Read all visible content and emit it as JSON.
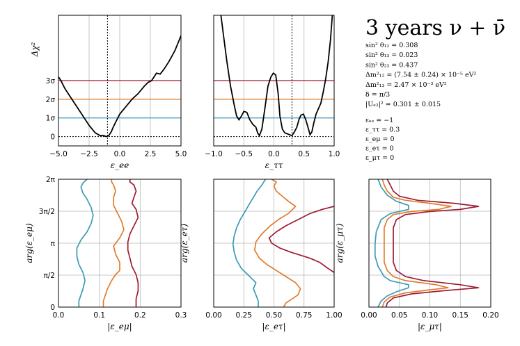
{
  "colors": {
    "sigma1": "#3a9bb5",
    "sigma2": "#e07b2e",
    "sigma3": "#9e1b32",
    "grid": "#b8b8b8"
  },
  "info": {
    "title": "3 years ν + ν̄",
    "params": [
      "sin² θ₁₂ = 0.308",
      "sin² θ₁₃ = 0.023",
      "sin² θ₂₃ = 0.437",
      "Δm²₁₂ = (7.54 ± 0.24) × 10⁻⁵ eV²",
      "Δm²₁₃ = 2.47 × 10⁻³ eV²",
      "δ = π/3",
      "|Uₑ₂|² = 0.301 ± 0.015"
    ],
    "nsi": [
      "εₑₑ = −1",
      "ε_ττ = 0.3",
      "ε_eμ = 0",
      "ε_eτ = 0",
      "ε_μτ = 0"
    ]
  },
  "chart_data": [
    {
      "type": "line",
      "title": "",
      "xlabel": "ε_ee",
      "ylabel": "Δχ²",
      "xlim": [
        -5,
        5
      ],
      "ylim": [
        -0.5,
        6.5
      ],
      "xticks": [
        "−5.0",
        "−2.5",
        "0.0",
        "2.5",
        "5.0"
      ],
      "yticks": [
        "0",
        "1σ",
        "2σ",
        "3σ"
      ],
      "ytick_values": [
        0,
        1,
        2,
        3
      ],
      "true_value": -1,
      "x": [
        -5,
        -4.8,
        -4.5,
        -4,
        -3.5,
        -3,
        -2.5,
        -2,
        -1.6,
        -1.3,
        -1.1,
        -0.9,
        -0.7,
        -0.5,
        -0.2,
        0,
        0.5,
        1,
        1.5,
        2,
        2.3,
        2.6,
        3,
        3.3,
        3.6,
        4,
        4.5,
        5
      ],
      "y": [
        3.2,
        3.0,
        2.6,
        2.1,
        1.6,
        1.1,
        0.6,
        0.2,
        0.05,
        0.05,
        0.0,
        0.05,
        0.25,
        0.55,
        0.95,
        1.2,
        1.6,
        2.0,
        2.3,
        2.7,
        2.9,
        3.0,
        3.4,
        3.35,
        3.6,
        4.0,
        4.6,
        5.4
      ]
    },
    {
      "type": "line",
      "title": "",
      "xlabel": "ε_ττ",
      "ylabel": "",
      "xlim": [
        -1,
        1
      ],
      "ylim": [
        -0.5,
        6.5
      ],
      "xticks": [
        "−1.0",
        "−0.5",
        "0.0",
        "0.5",
        "1.0"
      ],
      "true_value": 0.3,
      "x": [
        -0.88,
        -0.84,
        -0.78,
        -0.72,
        -0.66,
        -0.62,
        -0.58,
        -0.54,
        -0.5,
        -0.45,
        -0.4,
        -0.35,
        -0.3,
        -0.27,
        -0.24,
        -0.2,
        -0.15,
        -0.1,
        -0.05,
        -0.01,
        0.03,
        0.07,
        0.1,
        0.14,
        0.18,
        0.22,
        0.26,
        0.3,
        0.34,
        0.38,
        0.42,
        0.45,
        0.49,
        0.53,
        0.57,
        0.6,
        0.63,
        0.66,
        0.7,
        0.74,
        0.78,
        0.82,
        0.86,
        0.9,
        0.94,
        0.97
      ],
      "y": [
        6.5,
        5.5,
        4.0,
        2.7,
        1.7,
        1.1,
        0.9,
        1.1,
        1.35,
        1.3,
        0.9,
        0.65,
        0.5,
        0.2,
        0.05,
        0.4,
        1.5,
        2.7,
        3.2,
        3.4,
        3.3,
        2.3,
        1.1,
        0.4,
        0.2,
        0.15,
        0.1,
        0.05,
        0.25,
        0.5,
        0.95,
        1.15,
        1.2,
        0.9,
        0.45,
        0.1,
        0.25,
        0.7,
        1.2,
        1.5,
        1.8,
        2.4,
        3.1,
        4.0,
        5.2,
        6.5
      ]
    },
    {
      "type": "line",
      "title": "",
      "xlabel": "|ε_eμ|",
      "ylabel": "arg(ε_eμ)",
      "xlim": [
        0,
        0.3
      ],
      "ylim": [
        0,
        6.2832
      ],
      "xticks": [
        "0.0",
        "0.1",
        "0.2",
        "0.3"
      ],
      "yticks": [
        "0",
        "π/2",
        "π",
        "3π/2",
        "2π"
      ],
      "series": [
        {
          "name": "1σ",
          "x": [
            0.05,
            0.05,
            0.055,
            0.06,
            0.065,
            0.06,
            0.05,
            0.045,
            0.045,
            0.055,
            0.07,
            0.08,
            0.085,
            0.08,
            0.07,
            0.06,
            0.055,
            0.06,
            0.07
          ],
          "y": [
            0.0,
            0.3,
            0.6,
            0.9,
            1.3,
            1.7,
            2.1,
            2.5,
            2.9,
            3.3,
            3.7,
            4.1,
            4.5,
            4.9,
            5.3,
            5.6,
            5.9,
            6.1,
            6.2832
          ]
        },
        {
          "name": "2σ",
          "x": [
            0.11,
            0.11,
            0.115,
            0.12,
            0.13,
            0.14,
            0.15,
            0.15,
            0.14,
            0.135,
            0.15,
            0.16,
            0.155,
            0.145,
            0.135,
            0.135,
            0.14,
            0.135,
            0.13,
            0.13
          ],
          "y": [
            0.0,
            0.3,
            0.6,
            0.9,
            1.3,
            1.6,
            1.8,
            2.2,
            2.6,
            3.0,
            3.4,
            3.8,
            4.2,
            4.6,
            5.0,
            5.4,
            5.7,
            6.0,
            6.15,
            6.2832
          ]
        },
        {
          "name": "3σ",
          "x": [
            0.19,
            0.19,
            0.195,
            0.195,
            0.19,
            0.18,
            0.175,
            0.17,
            0.17,
            0.175,
            0.185,
            0.195,
            0.19,
            0.18,
            0.185,
            0.19,
            0.185,
            0.175,
            0.175
          ],
          "y": [
            0.0,
            0.4,
            0.8,
            1.2,
            1.6,
            2.0,
            2.4,
            2.8,
            3.2,
            3.6,
            4.0,
            4.4,
            4.8,
            5.1,
            5.4,
            5.7,
            6.0,
            6.15,
            6.2832
          ]
        }
      ]
    },
    {
      "type": "line",
      "title": "",
      "xlabel": "|ε_eτ|",
      "ylabel": "arg(ε_eτ)",
      "xlim": [
        0,
        1
      ],
      "ylim": [
        0,
        6.2832
      ],
      "xticks": [
        "0.00",
        "0.25",
        "0.50",
        "0.75",
        "1.00"
      ],
      "series": [
        {
          "name": "1σ",
          "x": [
            0.37,
            0.37,
            0.35,
            0.33,
            0.35,
            0.3,
            0.23,
            0.19,
            0.17,
            0.16,
            0.17,
            0.19,
            0.22,
            0.26,
            0.3,
            0.33,
            0.36,
            0.4,
            0.43
          ],
          "y": [
            0.0,
            0.3,
            0.6,
            0.9,
            1.2,
            1.5,
            1.9,
            2.3,
            2.7,
            3.1,
            3.5,
            3.9,
            4.3,
            4.7,
            5.1,
            5.4,
            5.7,
            6.0,
            6.2832
          ]
        },
        {
          "name": "2σ",
          "x": [
            0.58,
            0.6,
            0.65,
            0.7,
            0.72,
            0.68,
            0.6,
            0.52,
            0.44,
            0.38,
            0.34,
            0.35,
            0.4,
            0.47,
            0.55,
            0.62,
            0.68,
            0.62,
            0.58,
            0.52,
            0.5,
            0.52,
            0.48
          ],
          "y": [
            0.0,
            0.2,
            0.4,
            0.6,
            0.9,
            1.2,
            1.5,
            1.8,
            2.1,
            2.4,
            2.8,
            3.2,
            3.6,
            4.0,
            4.35,
            4.6,
            4.95,
            5.2,
            5.4,
            5.7,
            5.95,
            6.15,
            6.2832
          ]
        },
        {
          "name": "3σ",
          "x": [
            1.0,
            0.95,
            0.88,
            0.8,
            0.72,
            0.64,
            0.55,
            0.48,
            0.46,
            0.52,
            0.6,
            0.7,
            0.8,
            0.9,
            1.0
          ],
          "y": [
            1.7,
            1.9,
            2.2,
            2.4,
            2.55,
            2.7,
            2.9,
            3.15,
            3.4,
            3.7,
            4.0,
            4.3,
            4.6,
            4.8,
            4.95
          ]
        }
      ]
    },
    {
      "type": "line",
      "title": "",
      "xlabel": "|ε_μτ|",
      "ylabel": "arg(ε_μτ)",
      "xlim": [
        0,
        0.2
      ],
      "ylim": [
        0,
        6.2832
      ],
      "xticks": [
        "0.00",
        "0.05",
        "0.10",
        "0.15",
        "0.20"
      ],
      "series": [
        {
          "name": "1σ",
          "x": [
            0.015,
            0.02,
            0.03,
            0.045,
            0.065,
            0.065,
            0.035,
            0.025,
            0.015,
            0.01,
            0.01,
            0.012,
            0.02,
            0.035,
            0.065,
            0.065,
            0.045,
            0.03,
            0.02,
            0.015
          ],
          "y": [
            0.0,
            0.3,
            0.55,
            0.75,
            0.95,
            1.1,
            1.3,
            1.5,
            2.0,
            2.5,
            3.1,
            3.7,
            4.3,
            4.6,
            4.8,
            5.0,
            5.2,
            5.5,
            5.9,
            6.2832
          ]
        },
        {
          "name": "2σ",
          "x": [
            0.022,
            0.025,
            0.035,
            0.06,
            0.1,
            0.13,
            0.11,
            0.06,
            0.04,
            0.03,
            0.025,
            0.025,
            0.025,
            0.03,
            0.04,
            0.07,
            0.115,
            0.135,
            0.1,
            0.06,
            0.04,
            0.03,
            0.025,
            0.022
          ],
          "y": [
            0.0,
            0.25,
            0.5,
            0.7,
            0.85,
            0.95,
            1.1,
            1.3,
            1.5,
            1.8,
            2.2,
            3.1,
            3.9,
            4.3,
            4.55,
            4.7,
            4.8,
            4.95,
            5.1,
            5.25,
            5.4,
            5.7,
            6.0,
            6.2832
          ]
        },
        {
          "name": "3σ",
          "x": [
            0.028,
            0.03,
            0.04,
            0.07,
            0.12,
            0.18,
            0.15,
            0.09,
            0.06,
            0.045,
            0.04,
            0.04,
            0.04,
            0.045,
            0.06,
            0.1,
            0.15,
            0.18,
            0.14,
            0.08,
            0.05,
            0.04,
            0.035,
            0.03
          ],
          "y": [
            0.0,
            0.2,
            0.45,
            0.65,
            0.8,
            0.95,
            1.1,
            1.3,
            1.5,
            1.8,
            2.2,
            3.1,
            3.9,
            4.3,
            4.55,
            4.7,
            4.8,
            4.95,
            5.1,
            5.25,
            5.45,
            5.7,
            6.0,
            6.2832
          ]
        }
      ]
    }
  ]
}
